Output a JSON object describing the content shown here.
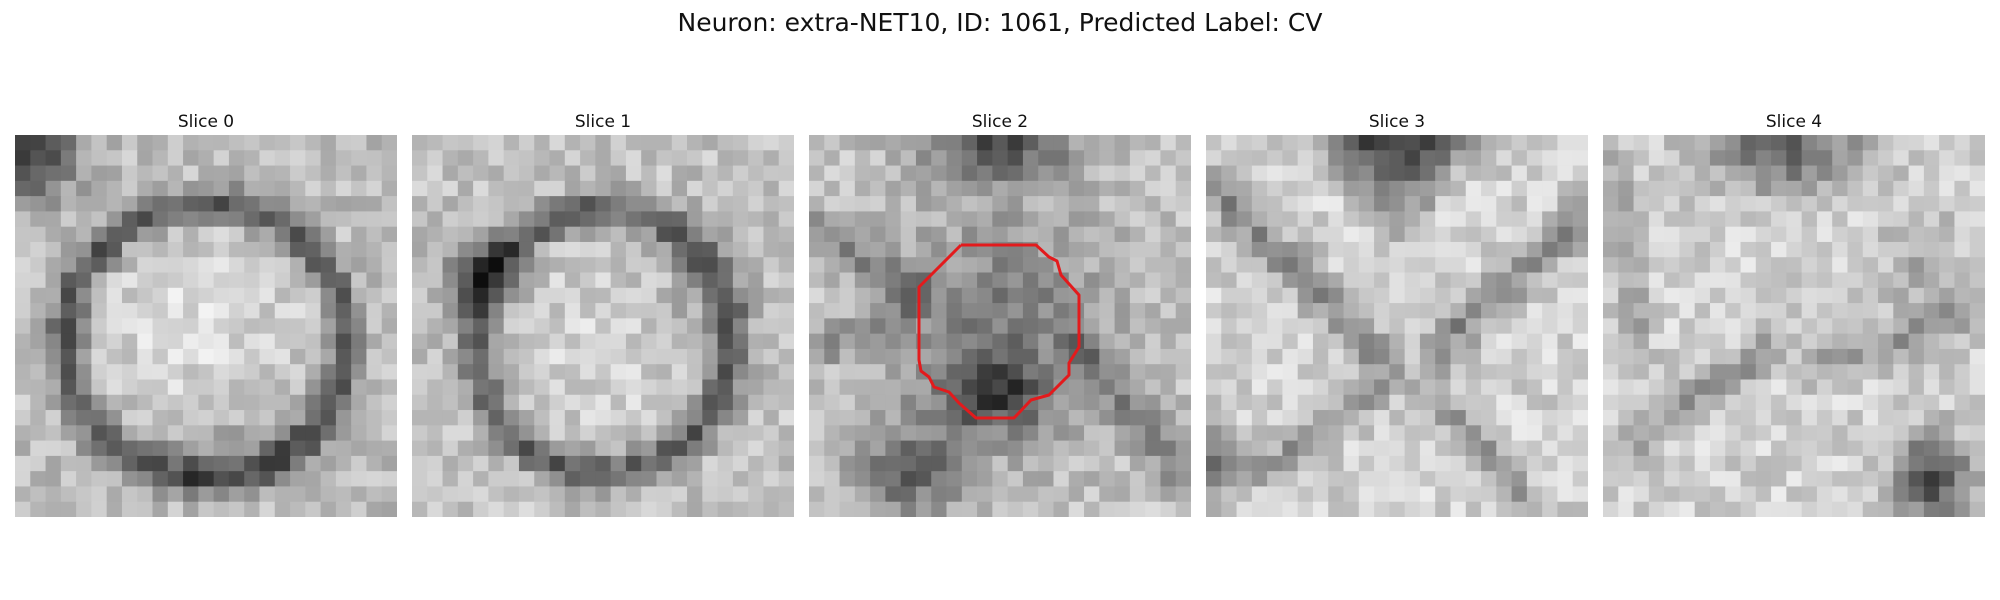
{
  "figure": {
    "title": "Neuron: extra-NET10, ID: 1061, Predicted Label: CV"
  },
  "colors": {
    "contour": "#e31a1c",
    "background": "#ffffff"
  },
  "panels": [
    {
      "title": "Slice 0",
      "contour": false
    },
    {
      "title": "Slice 1",
      "contour": false
    },
    {
      "title": "Slice 2",
      "contour": true
    },
    {
      "title": "Slice 3",
      "contour": false
    },
    {
      "title": "Slice 4",
      "contour": false
    }
  ]
}
